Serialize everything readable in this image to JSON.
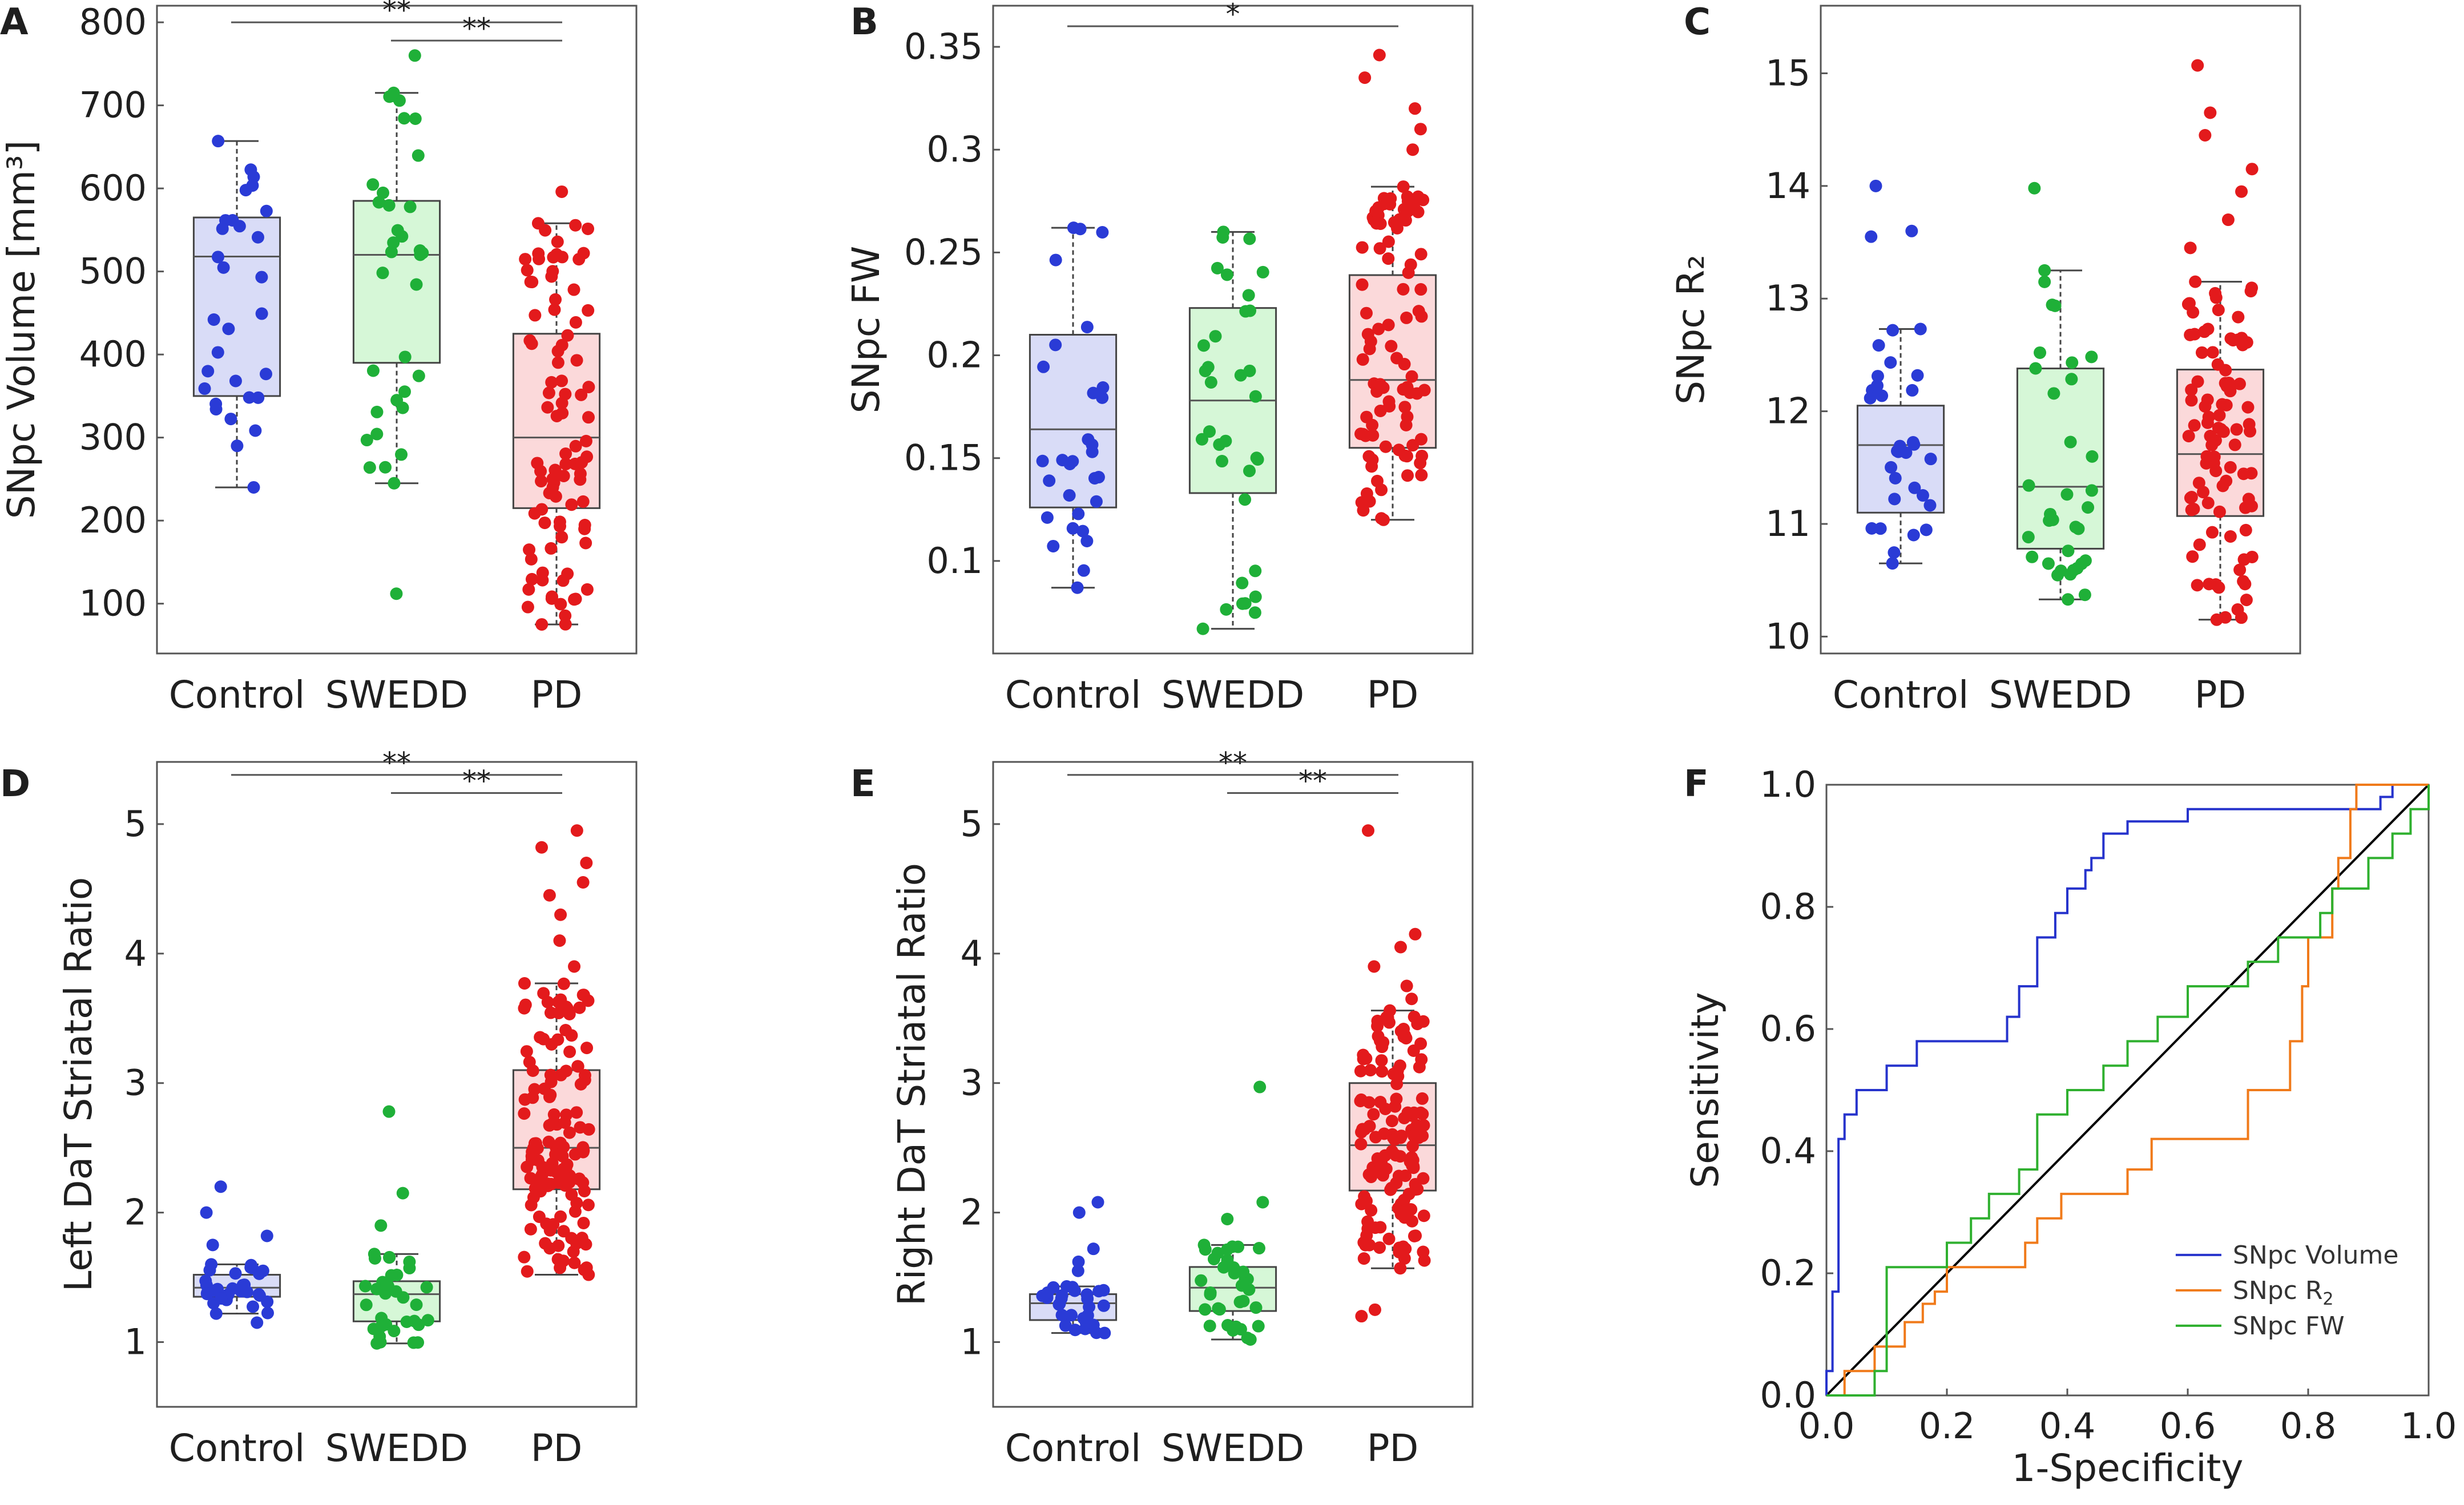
{
  "colors": {
    "control": "#2a3bd6",
    "swedd": "#1fb038",
    "pd": "#e31a1c",
    "control_fill": "#d9dcf7",
    "swedd_fill": "#d6f7d7",
    "pd_fill": "#fbd9da",
    "roc_volume": "#2633cc",
    "roc_r2": "#f07a1a",
    "roc_fw": "#2fb02f",
    "diagonal": "#000000"
  },
  "chart_data": [
    {
      "panel": "A",
      "type": "box",
      "ylabel": "SNpc Volume [mm³]",
      "categories": [
        "Control",
        "SWEDD",
        "PD"
      ],
      "ylim": [
        40,
        820
      ],
      "yticks": [
        100,
        200,
        300,
        400,
        500,
        600,
        700,
        800
      ],
      "ytick_labels": [
        "100",
        "200",
        "300",
        "400",
        "500",
        "600",
        "700",
        "800"
      ],
      "groups": [
        {
          "name": "Control",
          "q1": 350,
          "median": 518,
          "q3": 565,
          "whisker_low": 240,
          "whisker_high": 657,
          "n": 28,
          "outliers": []
        },
        {
          "name": "SWEDD",
          "q1": 390,
          "median": 520,
          "q3": 585,
          "whisker_low": 245,
          "whisker_high": 715,
          "n": 32,
          "outliers": [
            760,
            112
          ]
        },
        {
          "name": "PD",
          "q1": 215,
          "median": 300,
          "q3": 425,
          "whisker_low": 75,
          "whisker_high": 558,
          "n": 90,
          "outliers": [
            596
          ]
        }
      ],
      "significance": [
        {
          "from": "Control",
          "to": "PD",
          "label": "**",
          "y": 800
        },
        {
          "from": "SWEDD",
          "to": "PD",
          "label": "**",
          "y": 778
        }
      ]
    },
    {
      "panel": "B",
      "type": "box",
      "ylabel": "SNpc FW",
      "categories": [
        "Control",
        "SWEDD",
        "PD"
      ],
      "ylim": [
        0.055,
        0.37
      ],
      "yticks": [
        0.1,
        0.15,
        0.2,
        0.25,
        0.3,
        0.35
      ],
      "ytick_labels": [
        "0.1",
        "0.15",
        "0.2",
        "0.25",
        "0.3",
        "0.35"
      ],
      "groups": [
        {
          "name": "Control",
          "q1": 0.126,
          "median": 0.164,
          "q3": 0.21,
          "whisker_low": 0.087,
          "whisker_high": 0.262,
          "n": 28,
          "outliers": []
        },
        {
          "name": "SWEDD",
          "q1": 0.133,
          "median": 0.178,
          "q3": 0.223,
          "whisker_low": 0.067,
          "whisker_high": 0.26,
          "n": 32,
          "outliers": []
        },
        {
          "name": "PD",
          "q1": 0.155,
          "median": 0.188,
          "q3": 0.239,
          "whisker_low": 0.12,
          "whisker_high": 0.282,
          "n": 90,
          "outliers": [
            0.3,
            0.31,
            0.32,
            0.335,
            0.346
          ]
        }
      ],
      "significance": [
        {
          "from": "Control",
          "to": "PD",
          "label": "*",
          "y": 0.36
        }
      ]
    },
    {
      "panel": "C",
      "type": "box",
      "ylabel": "SNpc R₂",
      "categories": [
        "Control",
        "SWEDD",
        "PD"
      ],
      "ylim": [
        9.85,
        15.6
      ],
      "yticks": [
        10,
        11,
        12,
        13,
        14,
        15
      ],
      "ytick_labels": [
        "10",
        "11",
        "12",
        "13",
        "14",
        "15"
      ],
      "groups": [
        {
          "name": "Control",
          "q1": 11.1,
          "median": 11.7,
          "q3": 12.05,
          "whisker_low": 10.65,
          "whisker_high": 12.73,
          "n": 28,
          "outliers": [
            13.55,
            13.6,
            14.0
          ]
        },
        {
          "name": "SWEDD",
          "q1": 10.78,
          "median": 11.33,
          "q3": 12.38,
          "whisker_low": 10.33,
          "whisker_high": 13.25,
          "n": 32,
          "outliers": [
            13.98
          ]
        },
        {
          "name": "PD",
          "q1": 11.07,
          "median": 11.62,
          "q3": 12.37,
          "whisker_low": 10.15,
          "whisker_high": 13.15,
          "n": 90,
          "outliers": [
            13.45,
            13.7,
            13.95,
            14.15,
            14.45,
            14.65,
            15.07
          ]
        }
      ],
      "significance": []
    },
    {
      "panel": "D",
      "type": "box",
      "ylabel": "Left DaT Striatal Ratio",
      "categories": [
        "Control",
        "SWEDD",
        "PD"
      ],
      "ylim": [
        0.5,
        5.48
      ],
      "yticks": [
        1,
        2,
        3,
        4,
        5
      ],
      "ytick_labels": [
        "1",
        "2",
        "3",
        "4",
        "5"
      ],
      "groups": [
        {
          "name": "Control",
          "q1": 1.35,
          "median": 1.42,
          "q3": 1.52,
          "whisker_low": 1.22,
          "whisker_high": 1.6,
          "n": 28,
          "outliers": [
            1.15,
            1.75,
            1.82,
            2.0,
            2.2
          ]
        },
        {
          "name": "SWEDD",
          "q1": 1.16,
          "median": 1.37,
          "q3": 1.47,
          "whisker_low": 0.99,
          "whisker_high": 1.68,
          "n": 32,
          "outliers": [
            1.9,
            2.15,
            2.78
          ]
        },
        {
          "name": "PD",
          "q1": 2.18,
          "median": 2.5,
          "q3": 3.1,
          "whisker_low": 1.52,
          "whisker_high": 3.77,
          "n": 130,
          "outliers": [
            3.9,
            4.1,
            4.3,
            4.45,
            4.55,
            4.7,
            4.82,
            4.95
          ]
        }
      ],
      "significance": [
        {
          "from": "Control",
          "to": "PD",
          "label": "**",
          "y": 5.38
        },
        {
          "from": "SWEDD",
          "to": "PD",
          "label": "**",
          "y": 5.24
        }
      ]
    },
    {
      "panel": "E",
      "type": "box",
      "ylabel": "Right DaT Striatal Ratio",
      "categories": [
        "Control",
        "SWEDD",
        "PD"
      ],
      "ylim": [
        0.5,
        5.48
      ],
      "yticks": [
        1,
        2,
        3,
        4,
        5
      ],
      "ytick_labels": [
        "1",
        "2",
        "3",
        "4",
        "5"
      ],
      "groups": [
        {
          "name": "Control",
          "q1": 1.17,
          "median": 1.3,
          "q3": 1.37,
          "whisker_low": 1.07,
          "whisker_high": 1.43,
          "n": 28,
          "outliers": [
            1.55,
            1.62,
            1.72,
            2.0,
            2.08
          ]
        },
        {
          "name": "SWEDD",
          "q1": 1.24,
          "median": 1.42,
          "q3": 1.58,
          "whisker_low": 1.02,
          "whisker_high": 1.75,
          "n": 32,
          "outliers": [
            1.95,
            2.08,
            2.97
          ]
        },
        {
          "name": "PD",
          "q1": 2.17,
          "median": 2.52,
          "q3": 3.0,
          "whisker_low": 1.57,
          "whisker_high": 3.56,
          "n": 130,
          "outliers": [
            1.2,
            1.25,
            3.65,
            3.75,
            3.9,
            4.05,
            4.15,
            4.95
          ]
        }
      ],
      "significance": [
        {
          "from": "Control",
          "to": "PD",
          "label": "**",
          "y": 5.38
        },
        {
          "from": "SWEDD",
          "to": "PD",
          "label": "**",
          "y": 5.24
        }
      ]
    },
    {
      "panel": "F",
      "type": "line",
      "xlabel": "1-Specificity",
      "ylabel": "Sensitivity",
      "xlim": [
        0,
        1
      ],
      "ylim": [
        0,
        1
      ],
      "xticks": [
        0,
        0.2,
        0.4,
        0.6,
        0.8,
        1.0
      ],
      "yticks": [
        0,
        0.2,
        0.4,
        0.6,
        0.8,
        1.0
      ],
      "xtick_labels": [
        "0.0",
        "0.2",
        "0.4",
        "0.6",
        "0.8",
        "1.0"
      ],
      "ytick_labels": [
        "0.0",
        "0.2",
        "0.4",
        "0.6",
        "0.8",
        "1.0"
      ],
      "legend_position": "bottom-right",
      "series": [
        {
          "name": "SNpc Volume",
          "label_main": "SNpc Volume",
          "label_sub": "",
          "color_key": "roc_volume",
          "x": [
            0,
            0,
            0.01,
            0.01,
            0.02,
            0.02,
            0.03,
            0.03,
            0.05,
            0.05,
            0.1,
            0.1,
            0.15,
            0.15,
            0.3,
            0.3,
            0.32,
            0.32,
            0.35,
            0.35,
            0.38,
            0.38,
            0.4,
            0.4,
            0.43,
            0.43,
            0.44,
            0.44,
            0.46,
            0.46,
            0.5,
            0.5,
            0.6,
            0.6,
            0.92,
            0.92,
            0.94,
            0.94,
            1.0
          ],
          "y": [
            0,
            0.04,
            0.04,
            0.17,
            0.17,
            0.42,
            0.42,
            0.46,
            0.46,
            0.5,
            0.5,
            0.54,
            0.54,
            0.58,
            0.58,
            0.62,
            0.62,
            0.67,
            0.67,
            0.75,
            0.75,
            0.79,
            0.79,
            0.83,
            0.83,
            0.86,
            0.86,
            0.88,
            0.88,
            0.92,
            0.92,
            0.94,
            0.94,
            0.96,
            0.96,
            0.98,
            0.98,
            1.0,
            1.0
          ]
        },
        {
          "name": "SNpc R2",
          "label_main": "SNpc R",
          "label_sub": "2",
          "color_key": "roc_r2",
          "x": [
            0,
            0.03,
            0.03,
            0.08,
            0.08,
            0.13,
            0.13,
            0.16,
            0.16,
            0.18,
            0.18,
            0.2,
            0.2,
            0.33,
            0.33,
            0.35,
            0.35,
            0.39,
            0.39,
            0.5,
            0.5,
            0.54,
            0.54,
            0.57,
            0.57,
            0.7,
            0.7,
            0.77,
            0.77,
            0.79,
            0.79,
            0.8,
            0.8,
            0.84,
            0.84,
            0.85,
            0.85,
            0.87,
            0.87,
            0.88,
            0.88,
            0.9,
            0.9,
            1.0
          ],
          "y": [
            0,
            0,
            0.04,
            0.04,
            0.08,
            0.08,
            0.12,
            0.12,
            0.15,
            0.15,
            0.17,
            0.17,
            0.21,
            0.21,
            0.25,
            0.25,
            0.29,
            0.29,
            0.33,
            0.33,
            0.37,
            0.37,
            0.42,
            0.42,
            0.42,
            0.42,
            0.5,
            0.5,
            0.58,
            0.58,
            0.67,
            0.67,
            0.75,
            0.75,
            0.83,
            0.83,
            0.88,
            0.88,
            0.96,
            0.96,
            1.0,
            1.0,
            1.0,
            1.0
          ]
        },
        {
          "name": "SNpc FW",
          "label_main": "SNpc FW",
          "label_sub": "",
          "color_key": "roc_fw",
          "x": [
            0,
            0.08,
            0.08,
            0.1,
            0.1,
            0.2,
            0.2,
            0.24,
            0.24,
            0.27,
            0.27,
            0.32,
            0.32,
            0.35,
            0.35,
            0.4,
            0.4,
            0.46,
            0.46,
            0.5,
            0.5,
            0.55,
            0.55,
            0.6,
            0.6,
            0.7,
            0.7,
            0.75,
            0.75,
            0.82,
            0.82,
            0.84,
            0.84,
            0.9,
            0.9,
            0.94,
            0.94,
            0.97,
            0.97,
            1.0,
            1.0
          ],
          "y": [
            0,
            0,
            0.04,
            0.04,
            0.21,
            0.21,
            0.25,
            0.25,
            0.29,
            0.29,
            0.33,
            0.33,
            0.37,
            0.37,
            0.46,
            0.46,
            0.5,
            0.5,
            0.54,
            0.54,
            0.58,
            0.58,
            0.62,
            0.62,
            0.67,
            0.67,
            0.71,
            0.71,
            0.75,
            0.75,
            0.79,
            0.79,
            0.83,
            0.83,
            0.88,
            0.88,
            0.92,
            0.92,
            0.96,
            0.96,
            1.0
          ]
        }
      ]
    }
  ]
}
